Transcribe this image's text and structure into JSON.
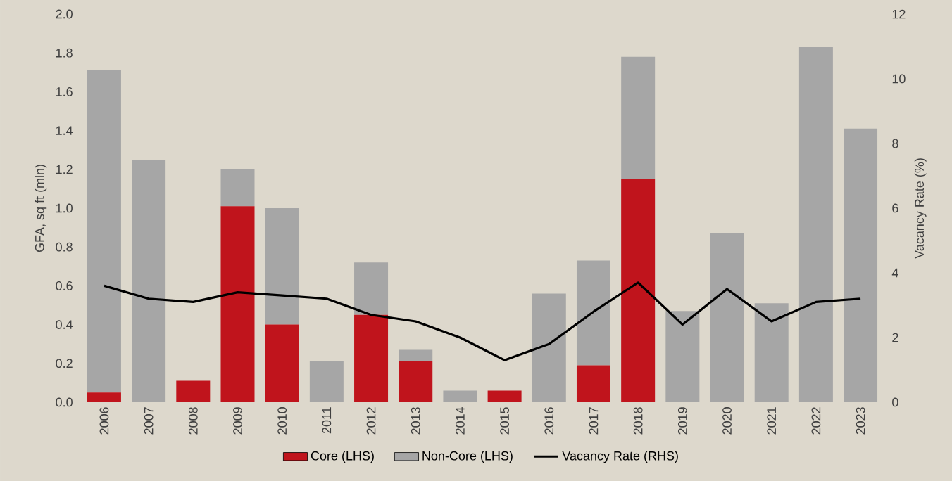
{
  "chart_data": {
    "type": "bar",
    "stacked": true,
    "ylabel": "GFA, sq ft (mln)",
    "y2label": "Vacancy Rate (%)",
    "categories": [
      "2006",
      "2007",
      "2008",
      "2009",
      "2010",
      "2011",
      "2012",
      "2013",
      "2014",
      "2015",
      "2016",
      "2017",
      "2018",
      "2019",
      "2020",
      "2021",
      "2022",
      "2023"
    ],
    "series": [
      {
        "name": "Core (LHS)",
        "color": "#c0141c",
        "values": [
          0.05,
          0,
          0.11,
          1.01,
          0.4,
          0,
          0.45,
          0.21,
          0,
          0.06,
          0,
          0.19,
          1.15,
          0,
          0,
          0,
          0,
          0
        ]
      },
      {
        "name": "Non-Core (LHS)",
        "color": "#a6a6a6",
        "values": [
          1.66,
          1.25,
          0,
          0.19,
          0.6,
          0.21,
          0.27,
          0.06,
          0.06,
          0,
          0.56,
          0.54,
          0.63,
          0.47,
          0.87,
          0.51,
          1.83,
          1.41
        ]
      },
      {
        "name": "Vacancy Rate (RHS)",
        "type": "line",
        "axis": "y2",
        "color": "#000000",
        "values": [
          3.6,
          3.2,
          3.1,
          3.4,
          3.3,
          3.2,
          2.7,
          2.5,
          2.0,
          1.3,
          1.8,
          2.8,
          3.7,
          2.4,
          3.5,
          2.5,
          3.1,
          3.2
        ]
      }
    ],
    "ylim": [
      0,
      2.0
    ],
    "yticks": [
      {
        "value": 0,
        "label": "0.0"
      },
      {
        "value": 0.2,
        "label": "0.2"
      },
      {
        "value": 0.4,
        "label": "0.4"
      },
      {
        "value": 0.6,
        "label": "0.6"
      },
      {
        "value": 0.8,
        "label": "0.8"
      },
      {
        "value": 1.0,
        "label": "1.0"
      },
      {
        "value": 1.2,
        "label": "1.2"
      },
      {
        "value": 1.4,
        "label": "1.4"
      },
      {
        "value": 1.6,
        "label": "1.6"
      },
      {
        "value": 1.8,
        "label": "1.8"
      },
      {
        "value": 2.0,
        "label": "2.0"
      }
    ],
    "y2lim": [
      0,
      12
    ],
    "y2ticks": [
      0,
      2,
      4,
      6,
      8,
      10,
      12
    ],
    "legend": "bottom",
    "grid": false,
    "marker": "none",
    "line_style": "solid"
  }
}
